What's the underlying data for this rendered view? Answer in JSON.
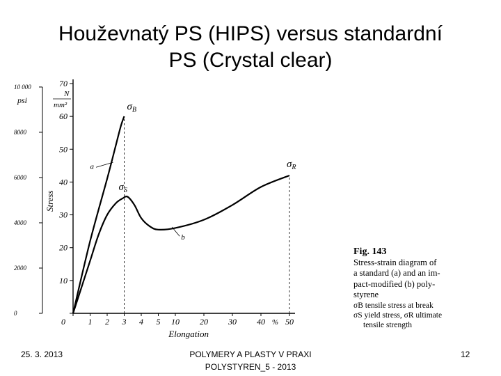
{
  "slide": {
    "title_line1": "Houževnatý PS (HIPS) versus standardní",
    "title_line2": "PS (Crystal clear)"
  },
  "chart_data": {
    "type": "line",
    "ylabel": "Stress",
    "xlabel": "Elongation",
    "y_units_left": "psi",
    "y_units_right_num": "N",
    "y_units_right_den": "mm²",
    "x_unit": "%",
    "yticks_Nmm2": [
      0,
      10,
      20,
      30,
      40,
      50,
      60,
      70
    ],
    "yticks_psi": [
      {
        "value": 0,
        "label": "0"
      },
      {
        "value": 2000,
        "label": "2000"
      },
      {
        "value": 4000,
        "label": "4000"
      },
      {
        "value": 6000,
        "label": "6000"
      },
      {
        "value": 8000,
        "label": "8000"
      },
      {
        "value": 10000,
        "label": "10 000"
      }
    ],
    "xticks_linear": [
      0,
      1,
      2,
      3,
      4,
      5,
      10
    ],
    "xticks_compressed": [
      20,
      30,
      40,
      50
    ],
    "series": [
      {
        "name": "a",
        "points": [
          [
            0,
            0
          ],
          [
            1,
            22
          ],
          [
            2,
            41
          ],
          [
            2.5,
            51
          ],
          [
            2.8,
            57
          ],
          [
            3.0,
            60
          ]
        ],
        "label": "σB"
      },
      {
        "name": "b",
        "points": [
          [
            0,
            0
          ],
          [
            0.5,
            8
          ],
          [
            1,
            16
          ],
          [
            1.5,
            24
          ],
          [
            2.0,
            30
          ],
          [
            2.5,
            33.5
          ],
          [
            2.9,
            35
          ],
          [
            3.2,
            35.5
          ],
          [
            3.6,
            33
          ],
          [
            4.0,
            29
          ],
          [
            4.5,
            26.5
          ],
          [
            5,
            25.5
          ],
          [
            10,
            26
          ],
          [
            20,
            28.5
          ],
          [
            30,
            33
          ],
          [
            40,
            38.5
          ],
          [
            50,
            42
          ]
        ],
        "yield_label": "σS",
        "break_label": "σR"
      }
    ],
    "dashed_guides": [
      3.0,
      50
    ]
  },
  "caption": {
    "fig": "Fig. 143",
    "lines": [
      "Stress-strain diagram of",
      "a standard (a) and an im-",
      "pact-modified (b) poly-",
      "styrene"
    ],
    "legend_lines": [
      "σB tensile stress at break",
      "σS yield stress, σR ultimate",
      "tensile strength"
    ]
  },
  "footer": {
    "date": "25. 3. 2013",
    "center_line1": "POLYMERY A PLASTY V PRAXI",
    "center_line2": "POLYSTYREN_5 - 2013",
    "page": "12"
  }
}
